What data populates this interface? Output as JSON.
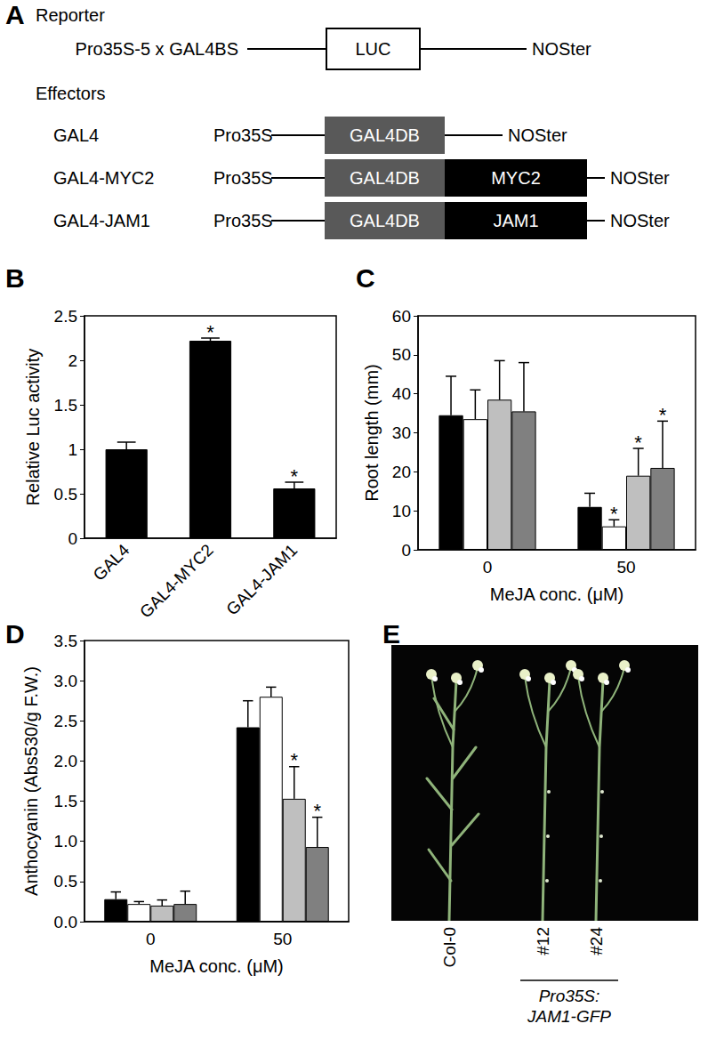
{
  "diagram": {
    "panel": "A",
    "reporter": {
      "title": "Reporter",
      "promoter": "Pro35S-5 x GAL4BS",
      "gene": "LUC",
      "terminator": "NOSter"
    },
    "effectors": {
      "title": "Effectors",
      "rows": [
        {
          "name": "GAL4",
          "promoter": "Pro35S",
          "domains": [
            "GAL4DB"
          ],
          "terminator": "NOSter"
        },
        {
          "name": "GAL4-MYC2",
          "promoter": "Pro35S",
          "domains": [
            "GAL4DB",
            "MYC2"
          ],
          "terminator": "NOSter"
        },
        {
          "name": "GAL4-JAM1",
          "promoter": "Pro35S",
          "domains": [
            "GAL4DB",
            "JAM1"
          ],
          "terminator": "NOSter"
        }
      ]
    }
  },
  "chart_data": [
    {
      "panel": "B",
      "type": "bar",
      "categories": [
        "GAL4",
        "GAL4-MYC2",
        "GAL4-JAM1"
      ],
      "values": [
        1.0,
        2.22,
        0.56
      ],
      "errors": [
        0.08,
        0.03,
        0.07
      ],
      "significance": [
        null,
        "*",
        "*"
      ],
      "color": "#000000",
      "ylabel": "Relative Luc activity",
      "ylim": [
        0,
        2.5
      ],
      "yticks": [
        0,
        0.5,
        1,
        1.5,
        2,
        2.5
      ],
      "grid": false
    },
    {
      "panel": "C",
      "type": "bar",
      "categories": [
        "0",
        "50"
      ],
      "xlabel": "MeJA conc. (μM)",
      "ylabel": "Root length (mm)",
      "series": [
        {
          "color": "#000000",
          "values": [
            34.5,
            11
          ],
          "errors": [
            10,
            3.5
          ],
          "significance": [
            null,
            null
          ]
        },
        {
          "color": "#ffffff",
          "values": [
            33.5,
            6
          ],
          "errors": [
            7.5,
            1.7
          ],
          "significance": [
            null,
            "*"
          ]
        },
        {
          "color": "#bfbfbf",
          "values": [
            38.5,
            19
          ],
          "errors": [
            10,
            7
          ],
          "significance": [
            null,
            "*"
          ]
        },
        {
          "color": "#808080",
          "values": [
            35.5,
            21
          ],
          "errors": [
            12.5,
            12
          ],
          "significance": [
            null,
            "*"
          ]
        }
      ],
      "ylim": [
        0,
        60
      ],
      "yticks": [
        0,
        10,
        20,
        30,
        40,
        50,
        60
      ],
      "grid": false
    },
    {
      "panel": "D",
      "type": "bar",
      "categories": [
        "0",
        "50"
      ],
      "xlabel": "MeJA conc. (μM)",
      "ylabel": "Anthocyanin (Abs530/g F.W.)",
      "series": [
        {
          "color": "#000000",
          "values": [
            0.28,
            2.42
          ],
          "errors": [
            0.09,
            0.33
          ],
          "significance": [
            null,
            null
          ]
        },
        {
          "color": "#ffffff",
          "values": [
            0.22,
            2.8
          ],
          "errors": [
            0.03,
            0.12
          ],
          "significance": [
            null,
            null
          ]
        },
        {
          "color": "#bfbfbf",
          "values": [
            0.2,
            1.53
          ],
          "errors": [
            0.07,
            0.4
          ],
          "significance": [
            null,
            "*"
          ]
        },
        {
          "color": "#808080",
          "values": [
            0.22,
            0.93
          ],
          "errors": [
            0.16,
            0.37
          ],
          "significance": [
            null,
            "*"
          ]
        }
      ],
      "ylim": [
        0,
        3.5
      ],
      "yticks": [
        {
          "value": 0,
          "label": "0.0"
        },
        {
          "value": 0.5,
          "label": "0.5"
        },
        {
          "value": 1,
          "label": "1.0"
        },
        {
          "value": 1.5,
          "label": "1.5"
        },
        {
          "value": 2,
          "label": "2.0"
        },
        {
          "value": 2.5,
          "label": "2.5"
        },
        {
          "value": 3,
          "label": "3.0"
        },
        {
          "value": 3.5,
          "label": "3.5"
        }
      ],
      "grid": false
    }
  ],
  "photo": {
    "panel": "E",
    "plants": [
      "Col-0",
      "#12",
      "#24"
    ],
    "group": {
      "members": [
        "#12",
        "#24"
      ],
      "label": [
        "Pro35S:",
        "JAM1-GFP"
      ]
    }
  }
}
